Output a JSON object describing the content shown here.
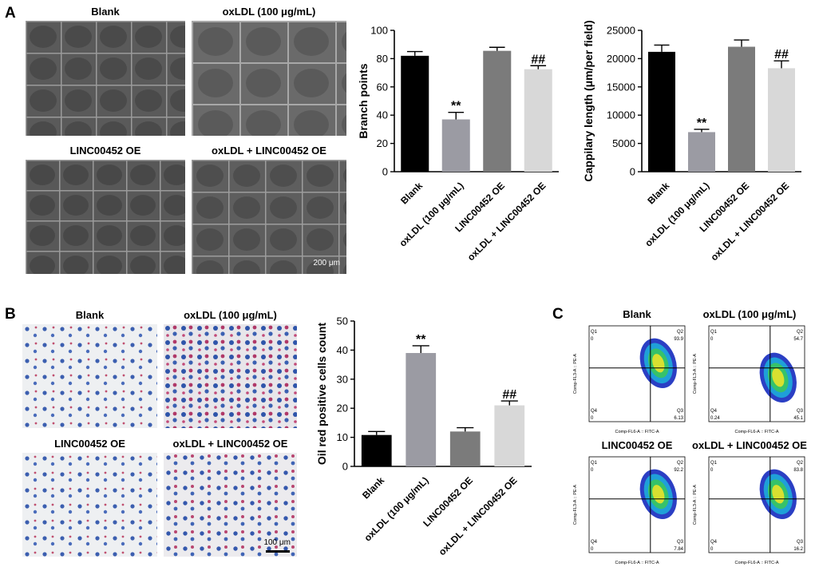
{
  "panels": {
    "A": "A",
    "B": "B",
    "C": "C"
  },
  "panel_a": {
    "titles": [
      "Blank",
      "oxLDL (100 μg/mL)",
      "LINC00452 OE",
      "oxLDL + LINC00452 OE"
    ],
    "scale_label": "200 μm"
  },
  "panel_b": {
    "titles": [
      "Blank",
      "oxLDL (100 μg/mL)",
      "LINC00452 OE",
      "oxLDL + LINC00452 OE"
    ],
    "scale_label": "100 μm"
  },
  "panel_c": {
    "titles": [
      "Blank",
      "oxLDL (100 μg/mL)",
      "LINC00452 OE",
      "oxLDL + LINC00452 OE"
    ],
    "xaxis_label": "Comp-FL6-A :: FITC-A",
    "yaxis_label": "Comp-FL3-A :: PE-A",
    "quadrant_names": [
      "Q1",
      "Q2",
      "Q3",
      "Q4"
    ],
    "plots": [
      {
        "q1": "0",
        "q2": "93.9",
        "q3": "6.13",
        "q4": "0"
      },
      {
        "q1": "0",
        "q2": "54.7",
        "q3": "45.1",
        "q4": "0.24"
      },
      {
        "q1": "0",
        "q2": "92.2",
        "q3": "7.84",
        "q4": "0"
      },
      {
        "q1": "0",
        "q2": "83.8",
        "q3": "16.2",
        "q4": "0"
      }
    ]
  },
  "chart_data": [
    {
      "type": "bar",
      "categories": [
        "Blank",
        "oxLDL (100 μg/mL)",
        "LINC00452 OE",
        "oxLDL + LINC00452 OE"
      ],
      "values": [
        82,
        37,
        85.5,
        72.5
      ],
      "errors": [
        3,
        5,
        2.5,
        2.5
      ],
      "annotations": [
        "",
        "**",
        "",
        "##"
      ],
      "ylabel": "Branch points",
      "ylim": [
        0,
        100
      ],
      "yticks": [
        0,
        20,
        40,
        60,
        80,
        100
      ],
      "colors": [
        "#000000",
        "#9b9ba3",
        "#7b7b7b",
        "#d8d8d8"
      ]
    },
    {
      "type": "bar",
      "categories": [
        "Blank",
        "oxLDL (100 μg/mL)",
        "LINC00452 OE",
        "oxLDL + LINC00452 OE"
      ],
      "values": [
        21200,
        7000,
        22100,
        18300
      ],
      "errors": [
        1200,
        500,
        1200,
        1300
      ],
      "annotations": [
        "",
        "**",
        "",
        "##"
      ],
      "ylabel": "Cappilary length (μm/per field)",
      "ylim": [
        0,
        25000
      ],
      "yticks": [
        0,
        5000,
        10000,
        15000,
        20000,
        25000
      ],
      "colors": [
        "#000000",
        "#9b9ba3",
        "#7b7b7b",
        "#d8d8d8"
      ]
    },
    {
      "type": "bar",
      "categories": [
        "Blank",
        "oxLDL (100 μg/mL)",
        "LINC00452 OE",
        "oxLDL + LINC00452 OE"
      ],
      "values": [
        10.8,
        39,
        12,
        21
      ],
      "errors": [
        1.2,
        2.5,
        1.3,
        1.5
      ],
      "annotations": [
        "",
        "**",
        "",
        "##"
      ],
      "ylabel": "Oil red positive cells count",
      "ylim": [
        0,
        50
      ],
      "yticks": [
        0,
        10,
        20,
        30,
        40,
        50
      ],
      "colors": [
        "#000000",
        "#9b9ba3",
        "#7b7b7b",
        "#d8d8d8"
      ]
    }
  ]
}
